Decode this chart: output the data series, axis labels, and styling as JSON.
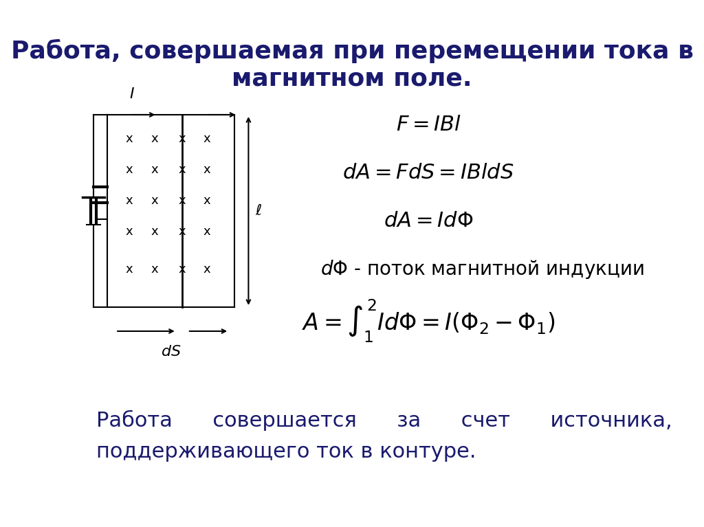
{
  "title": "Работа, совершаемая при перемещении тока в\nмагнитном поле.",
  "title_fontsize": 26,
  "title_color": "#1a1a6e",
  "bg_color": "#ffffff",
  "formula1": "$F = IBl$",
  "formula2": "$dA = FdS = IBldS$",
  "formula3": "$dA = Id\\Phi$",
  "formula4": "$d\\Phi$ - поток магнитной индукции",
  "formula5": "$A = \\int_{1}^{2} Id\\Phi = I(\\Phi_2 - \\Phi_1)$",
  "bottom_text1": "Работа      совершается      за      счет      источника,",
  "bottom_text2": "поддерживающего ток в контуре.",
  "formula_fontsize": 20,
  "text_fontsize": 22,
  "text_color": "#1a1a6e"
}
